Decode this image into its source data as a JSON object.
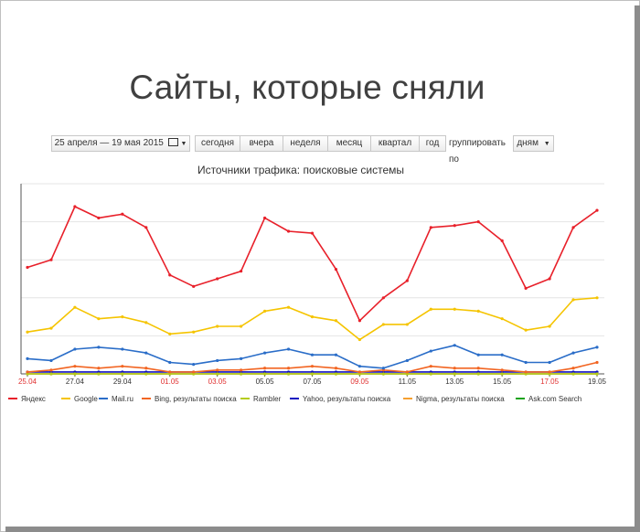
{
  "slide": {
    "title": "Сайты, которые сняли"
  },
  "toolbar": {
    "date_range": "25 апреля — 19 мая 2015",
    "calendar_icon": "calendar-icon",
    "periods": [
      "сегодня",
      "вчера",
      "неделя",
      "месяц",
      "квартал",
      "год"
    ],
    "group_label": "группировать по",
    "group_value": "дням"
  },
  "chart_data": {
    "type": "line",
    "title": "Источники трафика: поисковые системы",
    "x": [
      "25.04",
      "26.04",
      "27.04",
      "28.04",
      "29.04",
      "30.04",
      "01.05",
      "02.05",
      "03.05",
      "04.05",
      "05.05",
      "06.05",
      "07.05",
      "08.05",
      "09.05",
      "10.05",
      "11.05",
      "12.05",
      "13.05",
      "14.05",
      "15.05",
      "16.05",
      "17.05",
      "18.05",
      "19.05"
    ],
    "tick_labels": [
      "25.04",
      "27.04",
      "29.04",
      "01.05",
      "03.05",
      "05.05",
      "07.05",
      "09.05",
      "11.05",
      "13.05",
      "15.05",
      "17.05",
      "19.05"
    ],
    "weekend_ticks": [
      "25.04",
      "01.05",
      "03.05",
      "09.05",
      "17.05"
    ],
    "weekend_color": "#e03030",
    "ylim": [
      0,
      100
    ],
    "grid": true,
    "legend_position": "bottom",
    "series": [
      {
        "name": "Яндекс",
        "color": "#e8202a",
        "values": [
          56,
          60,
          88,
          82,
          84,
          77,
          52,
          46,
          50,
          54,
          82,
          75,
          74,
          55,
          28,
          40,
          49,
          77,
          78,
          80,
          70,
          45,
          50,
          77,
          86
        ]
      },
      {
        "name": "Google",
        "color": "#f5c400",
        "values": [
          22,
          24,
          35,
          29,
          30,
          27,
          21,
          22,
          25,
          25,
          33,
          35,
          30,
          28,
          18,
          26,
          26,
          34,
          34,
          33,
          29,
          23,
          25,
          39,
          40
        ]
      },
      {
        "name": "Mail.ru",
        "color": "#2a6dc8",
        "values": [
          8,
          7,
          13,
          14,
          13,
          11,
          6,
          5,
          7,
          8,
          11,
          13,
          10,
          10,
          4,
          3,
          7,
          12,
          15,
          10,
          10,
          6,
          6,
          11,
          14
        ]
      },
      {
        "name": "Bing, результаты поиска",
        "color": "#f26522",
        "values": [
          1,
          2,
          4,
          3,
          4,
          3,
          1,
          1,
          2,
          2,
          3,
          3,
          4,
          3,
          1,
          2,
          1,
          4,
          3,
          3,
          2,
          1,
          1,
          3,
          6
        ]
      },
      {
        "name": "Rambler",
        "color": "#b5cc18",
        "values": [
          0,
          0,
          0,
          0,
          0,
          0,
          0,
          0,
          0,
          0,
          0,
          0,
          0,
          0,
          0,
          0,
          0,
          0,
          0,
          0,
          0,
          0,
          0,
          0,
          0
        ]
      },
      {
        "name": "Yahoo, результаты поиска",
        "color": "#1010c0",
        "values": [
          1,
          1,
          1,
          1,
          1,
          1,
          1,
          1,
          1,
          1,
          1,
          1,
          1,
          1,
          1,
          1,
          1,
          1,
          1,
          1,
          1,
          1,
          1,
          1,
          1
        ]
      },
      {
        "name": "Nigma, результаты поиска",
        "color": "#f5a030",
        "values": [
          0,
          0,
          0,
          0,
          0,
          0,
          0,
          0,
          0,
          0,
          0,
          0,
          0,
          0,
          0,
          0,
          0,
          0,
          0,
          0,
          0,
          0,
          0,
          0,
          0
        ]
      },
      {
        "name": "Ask.com Search",
        "color": "#1aa31a",
        "values": [
          0,
          0,
          0,
          0,
          0,
          0,
          0,
          0,
          0,
          0,
          0,
          0,
          0,
          0,
          0,
          0,
          0,
          0,
          0,
          0,
          0,
          0,
          0,
          0,
          0
        ]
      }
    ]
  }
}
